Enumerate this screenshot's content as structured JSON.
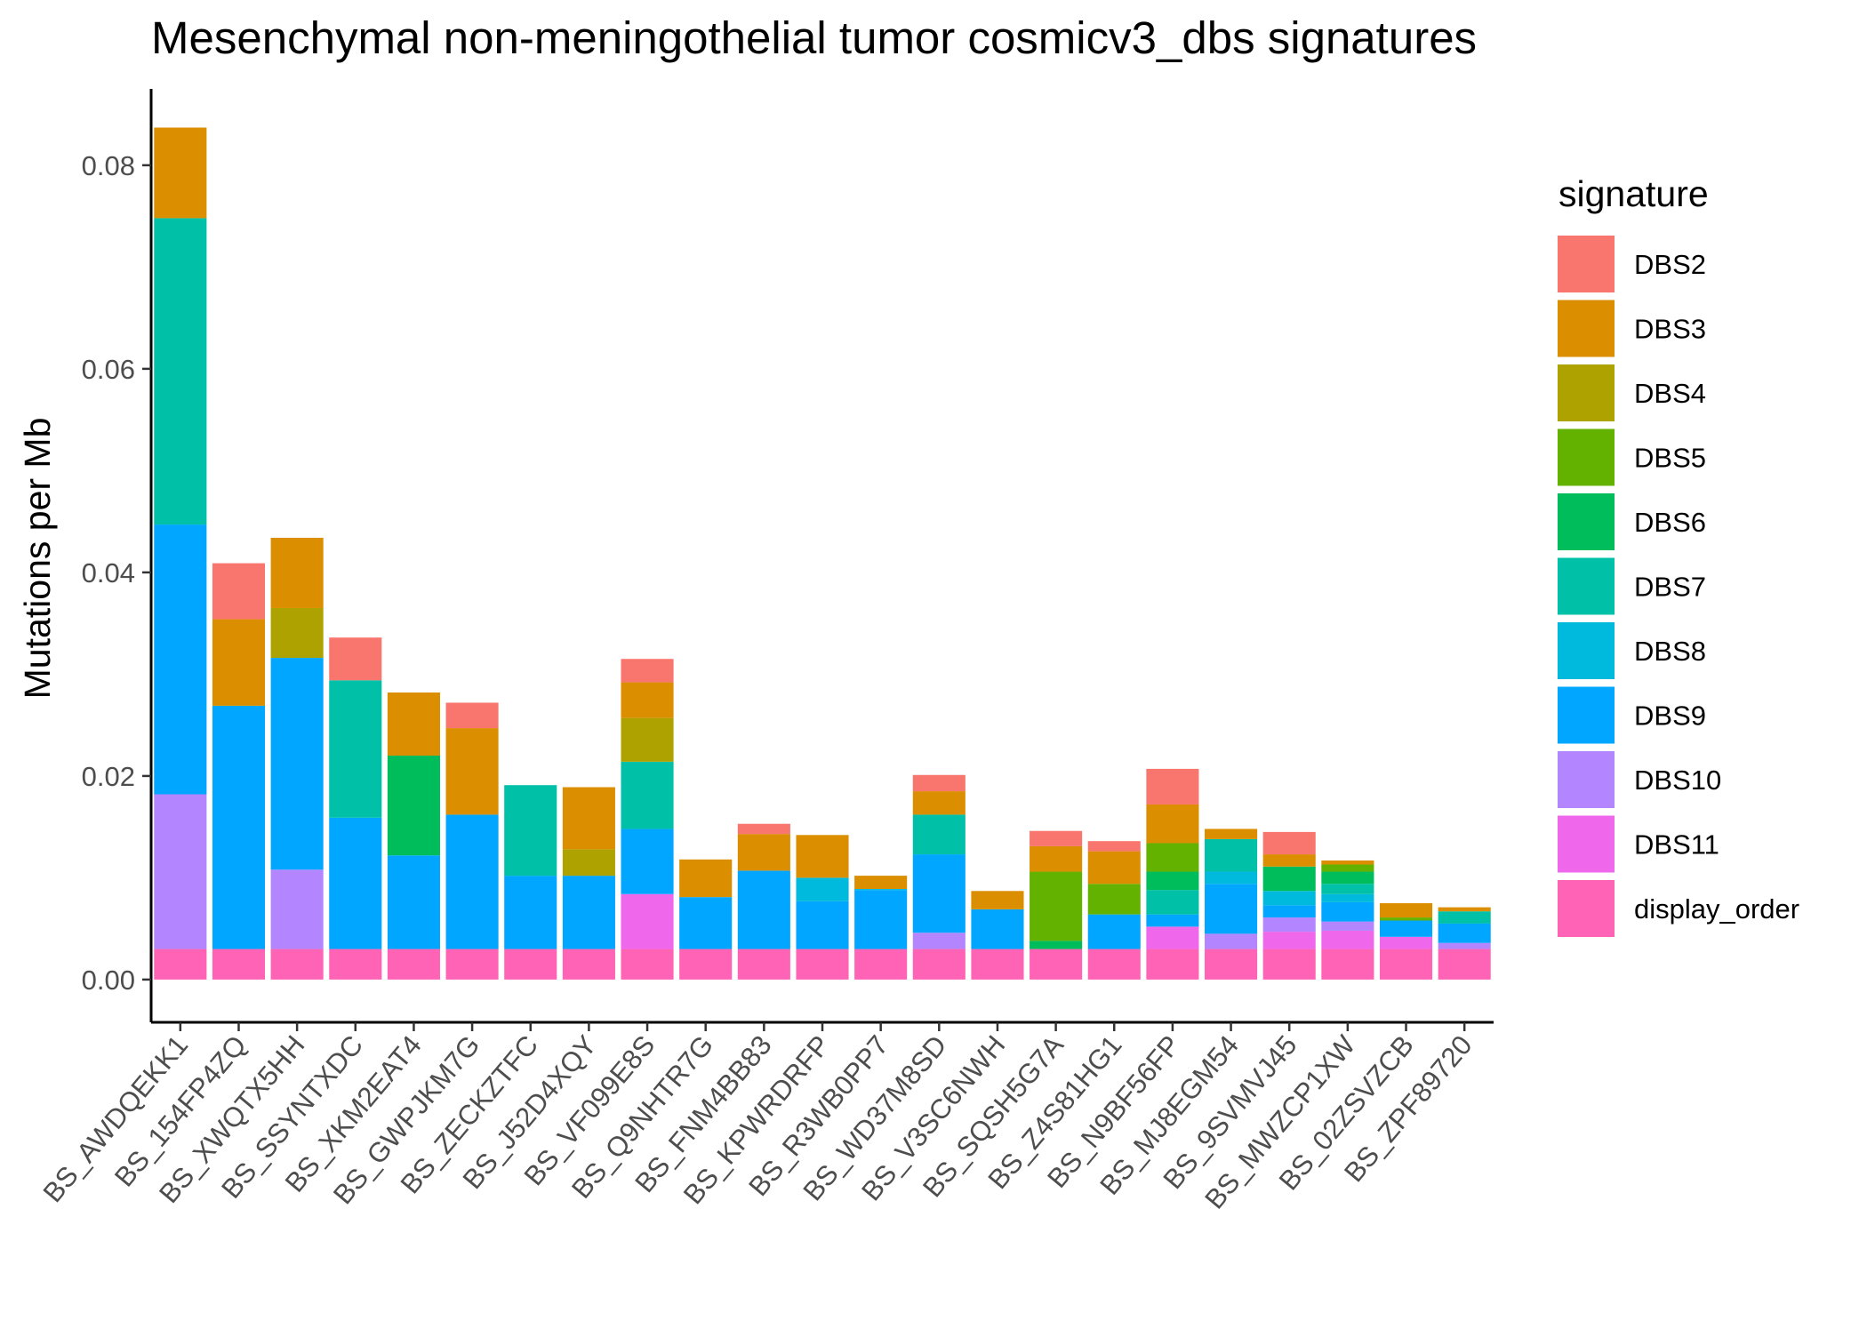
{
  "chart_data": {
    "type": "bar",
    "stacked": true,
    "title": "Mesenchymal non-meningothelial tumor cosmicv3_dbs signatures",
    "xlabel": "",
    "ylabel": "Mutations per Mb",
    "ylim": [
      -0.0042,
      0.0875
    ],
    "yticks": [
      0.0,
      0.02,
      0.04,
      0.06,
      0.08
    ],
    "ytick_labels": [
      "0.00",
      "0.02",
      "0.04",
      "0.06",
      "0.08"
    ],
    "legend": {
      "title": "signature",
      "position": "right"
    },
    "categories": [
      "BS_AWDQEKK1",
      "BS_154FP4ZQ",
      "BS_XWQTX5HH",
      "BS_SSYNTXDC",
      "BS_XKM2EAT4",
      "BS_GWPJKM7G",
      "BS_ZECKZTFC",
      "BS_J52D4XQY",
      "BS_VF099E8S",
      "BS_Q9NHTR7G",
      "BS_FNM4BB83",
      "BS_KPWRDRFP",
      "BS_R3WB0PP7",
      "BS_WD37M8SD",
      "BS_V3SC6NWH",
      "BS_SQSH5G7A",
      "BS_Z4S81HG1",
      "BS_N9BF56FP",
      "BS_MJ8EGM54",
      "BS_9SVMVJ45",
      "BS_MWZCP1XW",
      "BS_02ZSVZCB",
      "BS_ZPF89720"
    ],
    "series": [
      {
        "name": "DBS2",
        "color": "#F8766D",
        "values": [
          0,
          0.0055,
          0,
          0.0042,
          0,
          0.0025,
          0,
          0,
          0.0023,
          0,
          0.001,
          0,
          0,
          0.0016,
          0,
          0.0015,
          0.001,
          0.0035,
          0,
          0.0022,
          0,
          0,
          0
        ]
      },
      {
        "name": "DBS3",
        "color": "#DB8E00",
        "values": [
          0.0089,
          0.0085,
          0.0069,
          0,
          0.0062,
          0.0085,
          0,
          0.0061,
          0.0035,
          0.0037,
          0.0036,
          0.0042,
          0.0013,
          0.0023,
          0.0018,
          0.0025,
          0.0032,
          0.0038,
          0.001,
          0.0012,
          0.0004,
          0.0014,
          0.0004
        ]
      },
      {
        "name": "DBS4",
        "color": "#AEA200",
        "values": [
          0,
          0,
          0.0049,
          0,
          0,
          0,
          0,
          0.0026,
          0.0043,
          0,
          0,
          0,
          0,
          0,
          0,
          0,
          0,
          0,
          0,
          0,
          0,
          0,
          0
        ]
      },
      {
        "name": "DBS5",
        "color": "#64B200",
        "values": [
          0,
          0,
          0,
          0,
          0,
          0,
          0,
          0,
          0,
          0,
          0,
          0,
          0,
          0,
          0,
          0.0068,
          0.003,
          0.0028,
          0,
          0,
          0.0007,
          0.0003,
          0
        ]
      },
      {
        "name": "DBS6",
        "color": "#00BD5C",
        "values": [
          0,
          0,
          0,
          0,
          0.0098,
          0,
          0,
          0,
          0,
          0,
          0,
          0,
          0,
          0,
          0,
          0.0008,
          0,
          0.0018,
          0,
          0.0024,
          0.0012,
          0,
          0
        ]
      },
      {
        "name": "DBS7",
        "color": "#00C1A7",
        "values": [
          0.0301,
          0,
          0,
          0.0135,
          0,
          0,
          0.0089,
          0,
          0.0066,
          0,
          0,
          0,
          0,
          0.0039,
          0,
          0,
          0,
          0.0024,
          0.0032,
          0,
          0.001,
          0,
          0.0012
        ]
      },
      {
        "name": "DBS8",
        "color": "#00BADE",
        "values": [
          0,
          0,
          0,
          0,
          0,
          0,
          0,
          0,
          0,
          0,
          0,
          0.0023,
          0.0001,
          0,
          0,
          0,
          0,
          0,
          0.0012,
          0.0014,
          0.0008,
          0,
          0
        ]
      },
      {
        "name": "DBS9",
        "color": "#00A6FF",
        "values": [
          0.0265,
          0.0239,
          0.0208,
          0.0129,
          0.0092,
          0.0132,
          0.0072,
          0.0072,
          0.0064,
          0.0051,
          0.0077,
          0.0047,
          0.0058,
          0.0077,
          0.0039,
          0,
          0.0034,
          0.0012,
          0.0049,
          0.0012,
          0.0019,
          0.0016,
          0.0019
        ]
      },
      {
        "name": "DBS10",
        "color": "#B385FF",
        "values": [
          0.0152,
          0,
          0.0078,
          0,
          0,
          0,
          0,
          0,
          0,
          0,
          0,
          0,
          0,
          0.0016,
          0,
          0,
          0,
          0,
          0.0015,
          0.0014,
          0.0009,
          0,
          0.0006
        ]
      },
      {
        "name": "DBS11",
        "color": "#EF67EB",
        "values": [
          0,
          0,
          0,
          0,
          0,
          0,
          0,
          0,
          0.0054,
          0,
          0,
          0,
          0,
          0,
          0,
          0,
          0,
          0.0022,
          0,
          0.0017,
          0.0018,
          0.0012,
          0
        ]
      },
      {
        "name": "display_order",
        "color": "#FF63B6",
        "values": [
          0.003,
          0.003,
          0.003,
          0.003,
          0.003,
          0.003,
          0.003,
          0.003,
          0.003,
          0.003,
          0.003,
          0.003,
          0.003,
          0.003,
          0.003,
          0.003,
          0.003,
          0.003,
          0.003,
          0.003,
          0.003,
          0.003,
          0.003
        ]
      }
    ]
  }
}
